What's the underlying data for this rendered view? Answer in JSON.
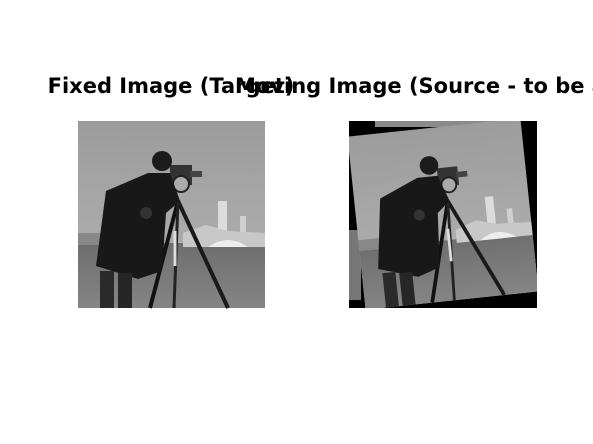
{
  "panels": [
    {
      "title": "Fixed Image (Target)"
    },
    {
      "title": "Moving Image (Source - to be alig"
    }
  ]
}
